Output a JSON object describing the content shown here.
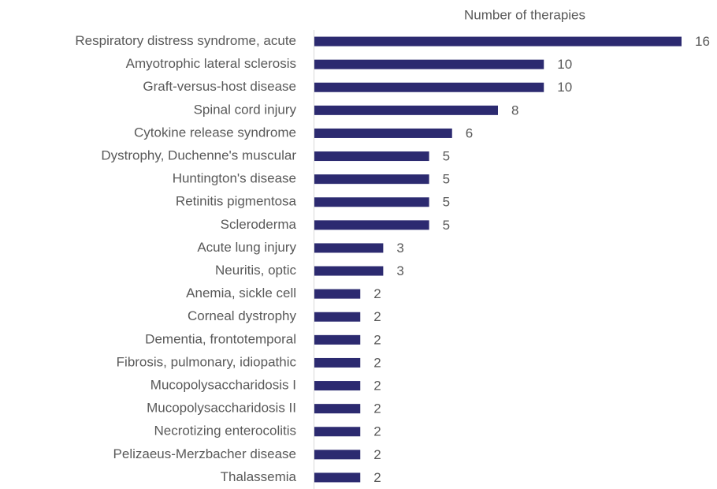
{
  "chart_data": {
    "type": "barh",
    "x_label": "Number of therapies",
    "categories": [
      "Respiratory distress syndrome, acute",
      "Amyotrophic lateral sclerosis",
      "Graft-versus-host disease",
      "Spinal cord injury",
      "Cytokine release syndrome",
      "Dystrophy, Duchenne's muscular",
      "Huntington's disease",
      "Retinitis pigmentosa",
      "Scleroderma",
      "Acute lung injury",
      "Neuritis, optic",
      "Anemia, sickle cell",
      "Corneal dystrophy",
      "Dementia, frontotemporal",
      "Fibrosis, pulmonary, idiopathic",
      "Mucopolysaccharidosis I",
      "Mucopolysaccharidosis II",
      "Necrotizing enterocolitis",
      "Pelizaeus-Merzbacher disease",
      "Thalassemia"
    ],
    "values": [
      16,
      10,
      10,
      8,
      6,
      5,
      5,
      5,
      5,
      3,
      3,
      2,
      2,
      2,
      2,
      2,
      2,
      2,
      2,
      2
    ],
    "color": "#2c2a70",
    "xlim": [
      0,
      16
    ]
  }
}
